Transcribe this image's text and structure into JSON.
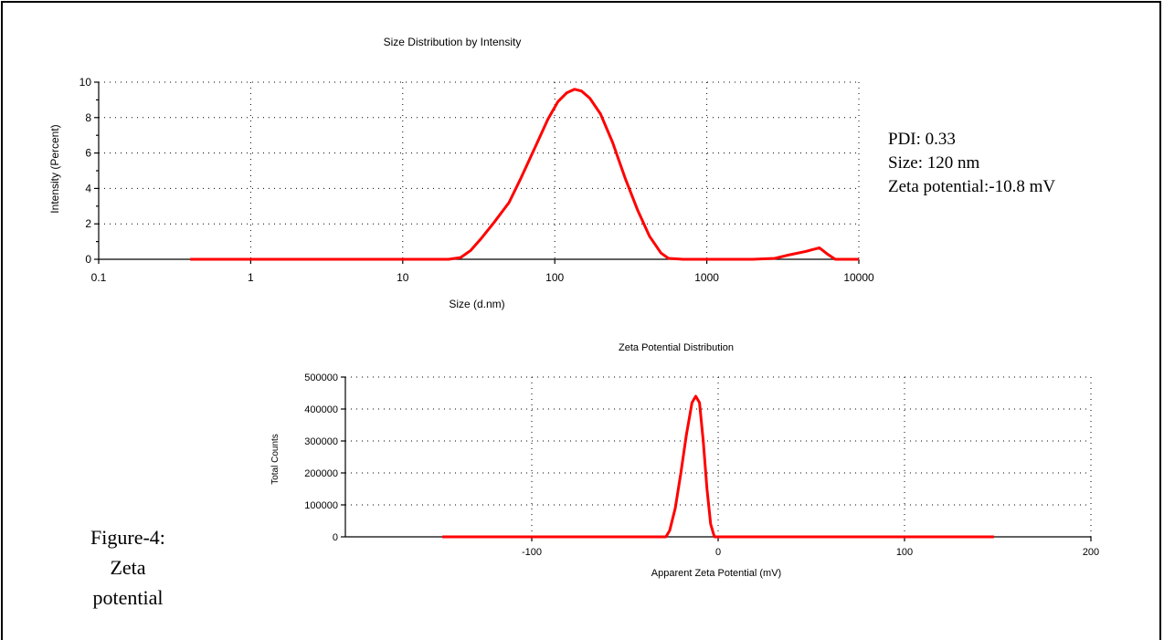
{
  "annotation": {
    "pdi": "PDI: 0.33",
    "size": "Size: 120 nm",
    "zeta": "Zeta potential:-10.8 mV"
  },
  "caption": {
    "line1": "Figure-4:",
    "line2": "Zeta",
    "line3": "potential"
  },
  "chart_data": [
    {
      "type": "line",
      "title": "Size Distribution by Intensity",
      "xlabel": "Size (d.nm)",
      "ylabel": "Intensity (Percent)",
      "xscale": "log",
      "xlim": [
        0.1,
        10000
      ],
      "ylim": [
        0,
        10
      ],
      "xticks": [
        "0.1",
        "1",
        "10",
        "100",
        "1000",
        "10000"
      ],
      "xtick_values": [
        0.1,
        1,
        10,
        100,
        1000,
        10000
      ],
      "yticks": [
        "0",
        "2",
        "4",
        "6",
        "8",
        "10"
      ],
      "ytick_values": [
        0,
        2,
        4,
        6,
        8,
        10
      ],
      "grid": true,
      "color": "#ff0000",
      "x": [
        0.4,
        20,
        24,
        28,
        33,
        40,
        50,
        60,
        75,
        90,
        105,
        120,
        135,
        150,
        170,
        200,
        240,
        290,
        350,
        420,
        500,
        560,
        700,
        1000,
        2000,
        2800,
        3500,
        4500,
        5500,
        6200,
        7000,
        10000
      ],
      "y": [
        0,
        0,
        0.1,
        0.5,
        1.2,
        2.1,
        3.2,
        4.6,
        6.4,
        7.9,
        8.9,
        9.4,
        9.6,
        9.5,
        9.1,
        8.2,
        6.6,
        4.6,
        2.8,
        1.3,
        0.35,
        0.05,
        0,
        0,
        0,
        0.05,
        0.25,
        0.45,
        0.65,
        0.3,
        0,
        0
      ]
    },
    {
      "type": "line",
      "title": "Zeta Potential Distribution",
      "xlabel": "Apparent Zeta Potential (mV)",
      "ylabel": "Total Counts",
      "xlim": [
        -200,
        200
      ],
      "ylim": [
        0,
        500000
      ],
      "xticks": [
        "-100",
        "0",
        "100",
        "200"
      ],
      "xtick_values": [
        -100,
        0,
        100,
        200
      ],
      "yticks": [
        "0",
        "100000",
        "200000",
        "300000",
        "400000",
        "500000"
      ],
      "ytick_values": [
        0,
        100000,
        200000,
        300000,
        400000,
        500000
      ],
      "grid": true,
      "color": "#ff0000",
      "x": [
        -148,
        -28,
        -26,
        -23,
        -20,
        -17,
        -14,
        -12,
        -10,
        -8,
        -6,
        -4,
        -2,
        148
      ],
      "y": [
        0,
        0,
        20000,
        90000,
        200000,
        320000,
        420000,
        440000,
        420000,
        300000,
        150000,
        40000,
        0,
        0
      ]
    }
  ]
}
